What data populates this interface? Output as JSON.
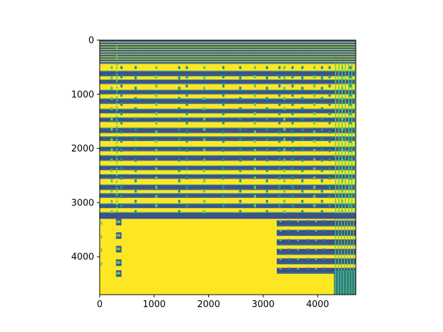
{
  "chart_data": {
    "type": "heatmap",
    "title": "",
    "xlabel": "",
    "ylabel": "",
    "colormap": "viridis",
    "colors": {
      "high": "#fde725",
      "mid_high": "#5ec962",
      "mid": "#21918c",
      "mid_low": "#3b528b",
      "low": "#440154",
      "band_dark": "#31688e",
      "band_navy": "#3b528b"
    },
    "matrix_size": [
      4700,
      4700
    ],
    "xlim": [
      0,
      4700
    ],
    "ylim": [
      4700,
      0
    ],
    "x_ticks": [
      0,
      1000,
      2000,
      3000,
      4000
    ],
    "x_tick_labels": [
      "0",
      "1000",
      "2000",
      "3000",
      "4000"
    ],
    "y_ticks": [
      0,
      1000,
      2000,
      3000,
      4000
    ],
    "y_tick_labels": [
      "0",
      "1000",
      "2000",
      "3000",
      "4000"
    ],
    "grid": false,
    "legend": "none",
    "structure": {
      "banded_region_rows": [
        0,
        3200
      ],
      "bands_upper_count": 27,
      "lower_left_block": {
        "rows": [
          3200,
          4700
        ],
        "cols": [
          0,
          3250
        ],
        "value": "high"
      },
      "lower_right_bands_rows": [
        3200,
        4250
      ],
      "bottom_right_block": {
        "rows": [
          4250,
          4700
        ],
        "cols": [
          4300,
          4700
        ]
      }
    }
  }
}
